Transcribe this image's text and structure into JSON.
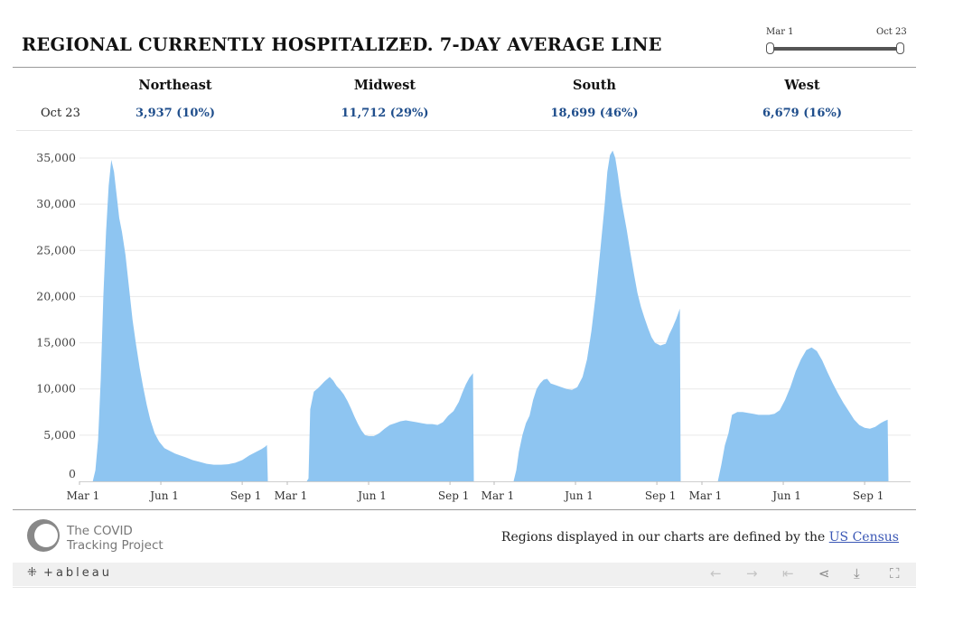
{
  "title": "REGIONAL CURRENTLY HOSPITALIZED. 7-DAY AVERAGE LINE",
  "slider": {
    "start_label": "Mar 1",
    "end_label": "Oct 23"
  },
  "summary": {
    "date_label": "Oct 23",
    "regions": [
      {
        "name": "Northeast",
        "value": "3,937 (10%)"
      },
      {
        "name": "Midwest",
        "value": "11,712 (29%)"
      },
      {
        "name": "South",
        "value": "18,699 (46%)"
      },
      {
        "name": "West",
        "value": "6,679 (16%)"
      }
    ]
  },
  "chart_data": {
    "type": "area",
    "ylim": [
      0,
      35000
    ],
    "y_ticks": [
      0,
      5000,
      10000,
      15000,
      20000,
      25000,
      30000,
      35000
    ],
    "y_tick_labels": [
      "0",
      "5,000",
      "10,000",
      "15,000",
      "20,000",
      "25,000",
      "30,000",
      "35,000"
    ],
    "x_tick_labels": [
      "Mar 1",
      "Jun 1",
      "Sep 1"
    ],
    "x_ticks_day": [
      0,
      92,
      184
    ],
    "x_max_day": 236,
    "color": "#8ec5f1",
    "panels": [
      {
        "name": "Northeast",
        "points": [
          [
            0,
            0
          ],
          [
            15,
            0
          ],
          [
            18,
            1200
          ],
          [
            21,
            4500
          ],
          [
            24,
            11000
          ],
          [
            27,
            20000
          ],
          [
            30,
            27000
          ],
          [
            33,
            32000
          ],
          [
            36,
            34800
          ],
          [
            39,
            33500
          ],
          [
            42,
            31000
          ],
          [
            45,
            28500
          ],
          [
            48,
            27000
          ],
          [
            52,
            24500
          ],
          [
            56,
            21000
          ],
          [
            60,
            17500
          ],
          [
            64,
            14800
          ],
          [
            68,
            12300
          ],
          [
            72,
            10200
          ],
          [
            76,
            8300
          ],
          [
            80,
            6700
          ],
          [
            85,
            5200
          ],
          [
            90,
            4300
          ],
          [
            96,
            3600
          ],
          [
            102,
            3300
          ],
          [
            108,
            3000
          ],
          [
            114,
            2800
          ],
          [
            120,
            2600
          ],
          [
            128,
            2300
          ],
          [
            136,
            2100
          ],
          [
            144,
            1900
          ],
          [
            152,
            1800
          ],
          [
            160,
            1800
          ],
          [
            168,
            1850
          ],
          [
            176,
            2000
          ],
          [
            184,
            2300
          ],
          [
            192,
            2800
          ],
          [
            200,
            3200
          ],
          [
            206,
            3500
          ],
          [
            210,
            3750
          ],
          [
            212,
            3937
          ],
          [
            213,
            0
          ]
        ]
      },
      {
        "name": "Midwest",
        "points": [
          [
            0,
            0
          ],
          [
            22,
            0
          ],
          [
            24,
            300
          ],
          [
            26,
            7800
          ],
          [
            30,
            9700
          ],
          [
            36,
            10200
          ],
          [
            42,
            10800
          ],
          [
            48,
            11300
          ],
          [
            52,
            10900
          ],
          [
            56,
            10300
          ],
          [
            60,
            9900
          ],
          [
            64,
            9400
          ],
          [
            68,
            8700
          ],
          [
            72,
            7900
          ],
          [
            76,
            7000
          ],
          [
            80,
            6200
          ],
          [
            84,
            5500
          ],
          [
            88,
            5000
          ],
          [
            92,
            4900
          ],
          [
            98,
            4900
          ],
          [
            104,
            5200
          ],
          [
            110,
            5700
          ],
          [
            116,
            6100
          ],
          [
            122,
            6300
          ],
          [
            128,
            6500
          ],
          [
            134,
            6600
          ],
          [
            140,
            6500
          ],
          [
            146,
            6400
          ],
          [
            152,
            6300
          ],
          [
            158,
            6200
          ],
          [
            164,
            6200
          ],
          [
            170,
            6100
          ],
          [
            176,
            6400
          ],
          [
            182,
            7100
          ],
          [
            188,
            7600
          ],
          [
            194,
            8600
          ],
          [
            198,
            9600
          ],
          [
            202,
            10500
          ],
          [
            206,
            11200
          ],
          [
            210,
            11712
          ],
          [
            211,
            0
          ]
        ]
      },
      {
        "name": "South",
        "points": [
          [
            0,
            0
          ],
          [
            22,
            0
          ],
          [
            25,
            1200
          ],
          [
            28,
            3200
          ],
          [
            32,
            5000
          ],
          [
            36,
            6300
          ],
          [
            40,
            7100
          ],
          [
            44,
            8800
          ],
          [
            48,
            10000
          ],
          [
            52,
            10600
          ],
          [
            56,
            11000
          ],
          [
            60,
            11100
          ],
          [
            64,
            10600
          ],
          [
            70,
            10400
          ],
          [
            76,
            10200
          ],
          [
            82,
            10000
          ],
          [
            88,
            9900
          ],
          [
            94,
            10200
          ],
          [
            100,
            11300
          ],
          [
            105,
            13200
          ],
          [
            110,
            16300
          ],
          [
            115,
            20300
          ],
          [
            120,
            25000
          ],
          [
            125,
            30000
          ],
          [
            128,
            33500
          ],
          [
            131,
            35300
          ],
          [
            134,
            35800
          ],
          [
            137,
            35000
          ],
          [
            140,
            33200
          ],
          [
            143,
            31000
          ],
          [
            146,
            29300
          ],
          [
            150,
            27200
          ],
          [
            154,
            24800
          ],
          [
            158,
            22500
          ],
          [
            162,
            20400
          ],
          [
            166,
            18900
          ],
          [
            170,
            17700
          ],
          [
            174,
            16600
          ],
          [
            178,
            15600
          ],
          [
            182,
            15000
          ],
          [
            188,
            14700
          ],
          [
            194,
            14900
          ],
          [
            198,
            15900
          ],
          [
            202,
            16700
          ],
          [
            206,
            17600
          ],
          [
            210,
            18699
          ],
          [
            211,
            0
          ]
        ]
      },
      {
        "name": "West",
        "points": [
          [
            0,
            0
          ],
          [
            18,
            0
          ],
          [
            22,
            1800
          ],
          [
            26,
            3900
          ],
          [
            30,
            5200
          ],
          [
            34,
            7200
          ],
          [
            40,
            7500
          ],
          [
            46,
            7500
          ],
          [
            52,
            7400
          ],
          [
            58,
            7300
          ],
          [
            64,
            7200
          ],
          [
            70,
            7200
          ],
          [
            76,
            7200
          ],
          [
            82,
            7300
          ],
          [
            88,
            7700
          ],
          [
            94,
            8800
          ],
          [
            100,
            10200
          ],
          [
            106,
            11900
          ],
          [
            112,
            13200
          ],
          [
            118,
            14200
          ],
          [
            124,
            14500
          ],
          [
            130,
            14100
          ],
          [
            136,
            13100
          ],
          [
            142,
            11800
          ],
          [
            148,
            10600
          ],
          [
            154,
            9500
          ],
          [
            160,
            8500
          ],
          [
            166,
            7600
          ],
          [
            172,
            6700
          ],
          [
            178,
            6100
          ],
          [
            184,
            5800
          ],
          [
            190,
            5700
          ],
          [
            196,
            5900
          ],
          [
            202,
            6300
          ],
          [
            206,
            6500
          ],
          [
            210,
            6679
          ],
          [
            211,
            0
          ]
        ]
      }
    ]
  },
  "footer": {
    "logo_line1": "The COVID",
    "logo_line2": "Tracking Project",
    "census_prefix": "Regions displayed in our charts are defined by the ",
    "census_link": "US Census"
  },
  "toolbar": {
    "logo": "+ableau",
    "icons": [
      "undo-icon",
      "redo-icon",
      "revert-icon",
      "share-icon",
      "download-icon",
      "fullscreen-icon"
    ]
  }
}
